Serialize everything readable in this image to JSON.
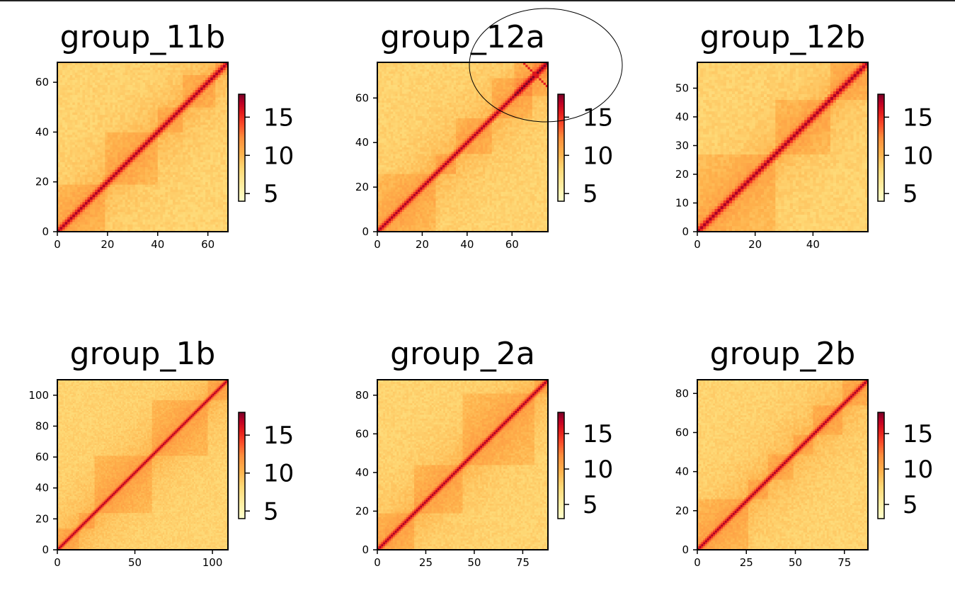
{
  "chart_data": [
    {
      "type": "heatmap",
      "title": "group_11b",
      "n": 68,
      "xlim": [
        0,
        68
      ],
      "ylim": [
        0,
        68
      ],
      "xticks": [
        0,
        20,
        40,
        60
      ],
      "yticks": [
        0,
        20,
        40,
        60
      ],
      "colorbar": {
        "min": 4,
        "max": 18,
        "ticks": [
          5,
          10,
          15
        ],
        "cmap": "YlOrRd"
      }
    },
    {
      "type": "heatmap",
      "title": "group_12a",
      "n": 76,
      "xlim": [
        0,
        76
      ],
      "ylim": [
        0,
        76
      ],
      "xticks": [
        0,
        20,
        40,
        60
      ],
      "yticks": [
        0,
        20,
        40,
        60
      ],
      "colorbar": {
        "min": 4,
        "max": 18,
        "ticks": [
          5,
          10,
          15
        ],
        "cmap": "YlOrRd"
      },
      "annotation": "hand-drawn ellipse around the top-right corner of the map"
    },
    {
      "type": "heatmap",
      "title": "group_12b",
      "n": 59,
      "xlim": [
        0,
        59
      ],
      "ylim": [
        0,
        59
      ],
      "xticks": [
        0,
        20,
        40
      ],
      "yticks": [
        0,
        10,
        20,
        30,
        40,
        50
      ],
      "colorbar": {
        "min": 4,
        "max": 18,
        "ticks": [
          5,
          10,
          15
        ],
        "cmap": "YlOrRd"
      }
    },
    {
      "type": "heatmap",
      "title": "group_1b",
      "n": 110,
      "xlim": [
        0,
        110
      ],
      "ylim": [
        0,
        110
      ],
      "xticks": [
        0,
        50,
        100
      ],
      "yticks": [
        0,
        20,
        40,
        60,
        80,
        100
      ],
      "colorbar": {
        "min": 4,
        "max": 18,
        "ticks": [
          5,
          10,
          15
        ],
        "cmap": "YlOrRd"
      }
    },
    {
      "type": "heatmap",
      "title": "group_2a",
      "n": 88,
      "xlim": [
        0,
        88
      ],
      "ylim": [
        0,
        88
      ],
      "xticks": [
        0,
        25,
        50,
        75
      ],
      "yticks": [
        0,
        20,
        40,
        60,
        80
      ],
      "colorbar": {
        "min": 3,
        "max": 18,
        "ticks": [
          5,
          10,
          15
        ],
        "cmap": "YlOrRd"
      }
    },
    {
      "type": "heatmap",
      "title": "group_2b",
      "n": 87,
      "xlim": [
        0,
        87
      ],
      "ylim": [
        0,
        87
      ],
      "xticks": [
        0,
        25,
        50,
        75
      ],
      "yticks": [
        0,
        20,
        40,
        60,
        80
      ],
      "colorbar": {
        "min": 3,
        "max": 18,
        "ticks": [
          5,
          10,
          15
        ],
        "cmap": "YlOrRd"
      }
    }
  ]
}
